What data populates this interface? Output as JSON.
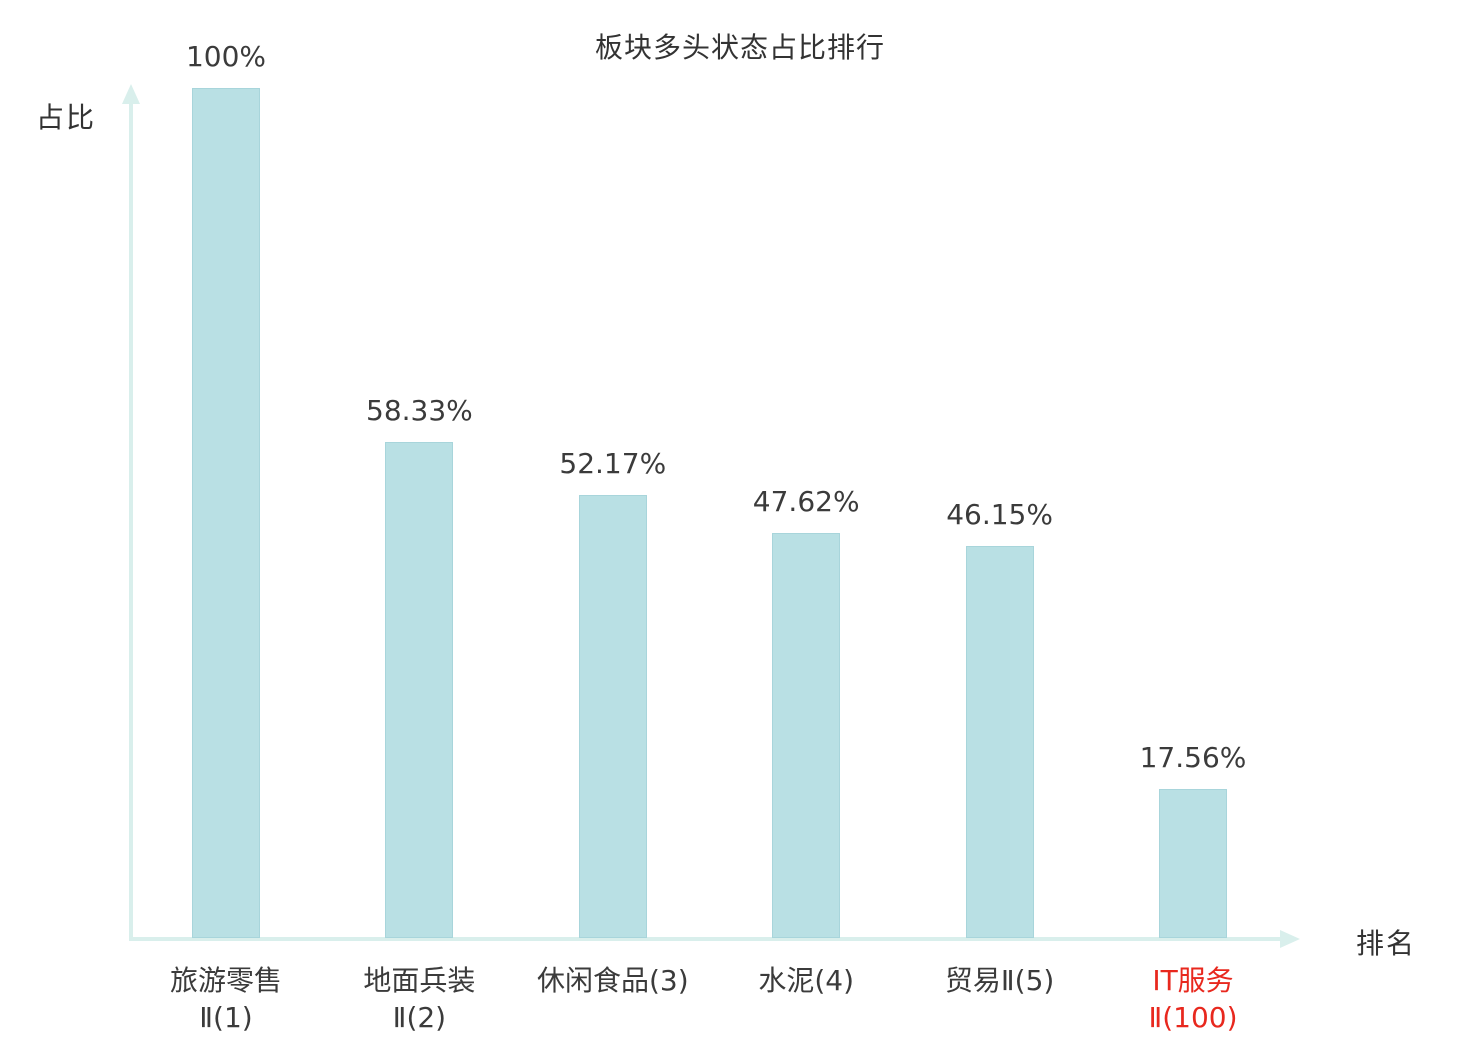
{
  "chart_data": {
    "type": "bar",
    "title": "板块多头状态占比排行",
    "xlabel": "排名",
    "ylabel": "占比",
    "categories": [
      "旅游零售Ⅱ(1)",
      "地面兵装Ⅱ(2)",
      "休闲食品(3)",
      "水泥(4)",
      "贸易Ⅱ(5)",
      "IT服务Ⅱ(100)"
    ],
    "category_lines": [
      [
        "旅游零售",
        "Ⅱ(1)"
      ],
      [
        "地面兵装",
        "Ⅱ(2)"
      ],
      [
        "休闲食品(3)"
      ],
      [
        "水泥(4)"
      ],
      [
        "贸易Ⅱ(5)"
      ],
      [
        "IT服务",
        "Ⅱ(100)"
      ]
    ],
    "values": [
      100,
      58.33,
      52.17,
      47.62,
      46.15,
      17.56
    ],
    "value_labels": [
      "100%",
      "58.33%",
      "52.17%",
      "47.62%",
      "46.15%",
      "17.56%"
    ],
    "highlighted_category_index": 5,
    "ylim": [
      0,
      100
    ],
    "grid": false,
    "legend": null,
    "colors": {
      "bar": "#b9e0e4",
      "bar_border": "#a8d5db",
      "axis": "#d9efec",
      "text": "#3b3b3b",
      "highlight": "#e8281e"
    }
  }
}
